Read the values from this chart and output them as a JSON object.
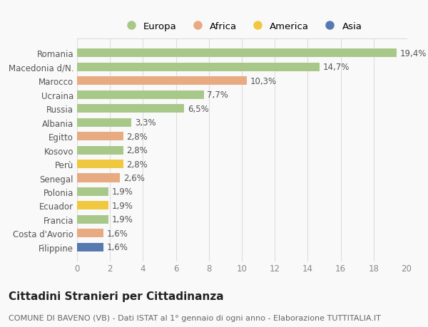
{
  "categories": [
    "Romania",
    "Macedonia d/N.",
    "Marocco",
    "Ucraina",
    "Russia",
    "Albania",
    "Egitto",
    "Kosovo",
    "Perù",
    "Senegal",
    "Polonia",
    "Ecuador",
    "Francia",
    "Costa d'Avorio",
    "Filippine"
  ],
  "values": [
    19.4,
    14.7,
    10.3,
    7.7,
    6.5,
    3.3,
    2.8,
    2.8,
    2.8,
    2.6,
    1.9,
    1.9,
    1.9,
    1.6,
    1.6
  ],
  "labels": [
    "19,4%",
    "14,7%",
    "10,3%",
    "7,7%",
    "6,5%",
    "3,3%",
    "2,8%",
    "2,8%",
    "2,8%",
    "2,6%",
    "1,9%",
    "1,9%",
    "1,9%",
    "1,6%",
    "1,6%"
  ],
  "continents": [
    "Europa",
    "Europa",
    "Africa",
    "Europa",
    "Europa",
    "Europa",
    "Africa",
    "Europa",
    "America",
    "Africa",
    "Europa",
    "America",
    "Europa",
    "Africa",
    "Asia"
  ],
  "colors": {
    "Europa": "#a8c88a",
    "Africa": "#e8aa80",
    "America": "#f0c840",
    "Asia": "#5878b0"
  },
  "xlim": [
    0,
    20
  ],
  "xticks": [
    0,
    2,
    4,
    6,
    8,
    10,
    12,
    14,
    16,
    18,
    20
  ],
  "title": "Cittadini Stranieri per Cittadinanza",
  "subtitle": "COMUNE DI BAVENO (VB) - Dati ISTAT al 1° gennaio di ogni anno - Elaborazione TUTTITALIA.IT",
  "background_color": "#f9f9f9",
  "bar_height": 0.62,
  "label_fontsize": 8.5,
  "tick_fontsize": 8.5,
  "title_fontsize": 11,
  "subtitle_fontsize": 8,
  "legend_order": [
    "Europa",
    "Africa",
    "America",
    "Asia"
  ]
}
